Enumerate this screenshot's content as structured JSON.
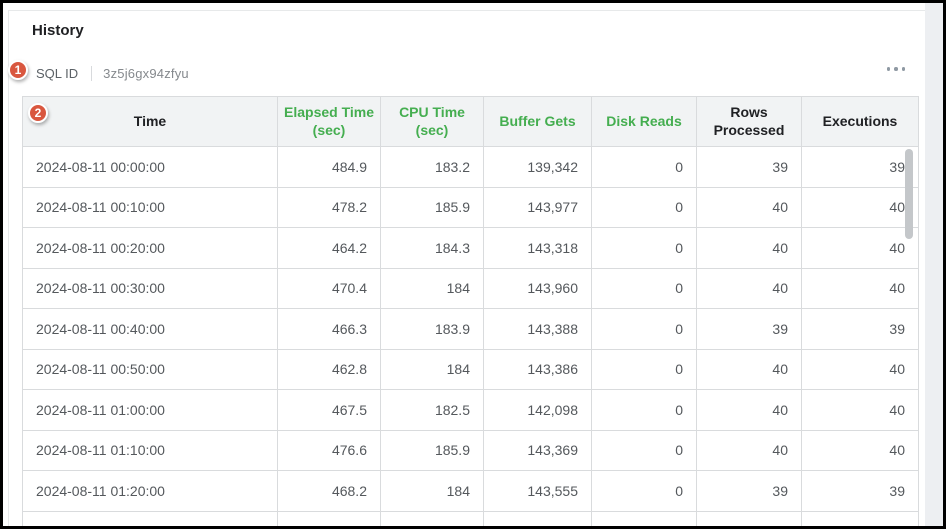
{
  "header": {
    "title": "History",
    "sql_id_label": "SQL ID",
    "sql_id_value": "3z5j6gx94zfyu",
    "more_menu_icon": "horizontal-ellipsis-icon"
  },
  "callouts": {
    "badge_1": "1",
    "badge_2": "2"
  },
  "colors": {
    "header_green": "#45ae50",
    "callout_badge": "#d9573f",
    "header_background": "#f1f3f4",
    "table_border": "#d9dbdd",
    "cell_text": "#54585c",
    "header_dark_text": "#202124"
  },
  "table": {
    "columns": [
      {
        "label": "Time",
        "style": "dark",
        "align": "left"
      },
      {
        "label": "Elapsed Time (sec)",
        "style": "green",
        "align": "right"
      },
      {
        "label": "CPU Time (sec)",
        "style": "green",
        "align": "right"
      },
      {
        "label": "Buffer Gets",
        "style": "green",
        "align": "right"
      },
      {
        "label": "Disk Reads",
        "style": "green",
        "align": "right"
      },
      {
        "label": "Rows Processed",
        "style": "dark",
        "align": "right"
      },
      {
        "label": "Executions",
        "style": "dark",
        "align": "right"
      }
    ],
    "rows": [
      [
        "2024-08-11 00:00:00",
        "484.9",
        "183.2",
        "139,342",
        "0",
        "39",
        "39"
      ],
      [
        "2024-08-11 00:10:00",
        "478.2",
        "185.9",
        "143,977",
        "0",
        "40",
        "40"
      ],
      [
        "2024-08-11 00:20:00",
        "464.2",
        "184.3",
        "143,318",
        "0",
        "40",
        "40"
      ],
      [
        "2024-08-11 00:30:00",
        "470.4",
        "184",
        "143,960",
        "0",
        "40",
        "40"
      ],
      [
        "2024-08-11 00:40:00",
        "466.3",
        "183.9",
        "143,388",
        "0",
        "39",
        "39"
      ],
      [
        "2024-08-11 00:50:00",
        "462.8",
        "184",
        "143,386",
        "0",
        "40",
        "40"
      ],
      [
        "2024-08-11 01:00:00",
        "467.5",
        "182.5",
        "142,098",
        "0",
        "40",
        "40"
      ],
      [
        "2024-08-11 01:10:00",
        "476.6",
        "185.9",
        "143,369",
        "0",
        "40",
        "40"
      ],
      [
        "2024-08-11 01:20:00",
        "468.2",
        "184",
        "143,555",
        "0",
        "39",
        "39"
      ]
    ]
  }
}
